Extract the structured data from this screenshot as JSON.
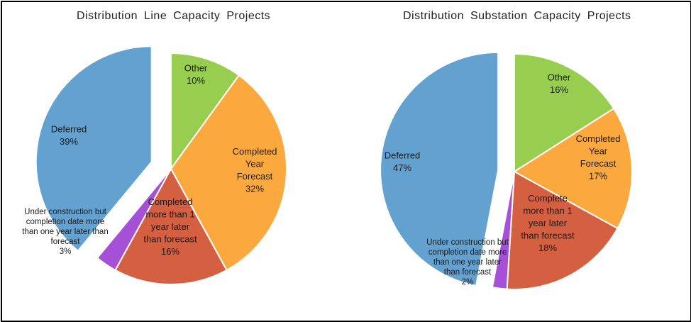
{
  "colors": {
    "blue": "#63A2D0",
    "green": "#97CE50",
    "orange": "#FBA93E",
    "red": "#D45F41",
    "purple": "#A650D8"
  },
  "chart_data": [
    {
      "type": "pie",
      "title": "Distribution Line Capacity Projects",
      "slices": [
        {
          "name": "Other",
          "value": 10,
          "pct_label": "10%",
          "color": "#97CE50",
          "label_lines": [
            "Other",
            "10%"
          ]
        },
        {
          "name": "Completed Year Forecast",
          "value": 32,
          "pct_label": "32%",
          "color": "#FBA93E",
          "label_lines": [
            "Completed",
            "Year",
            "Forecast",
            "32%"
          ]
        },
        {
          "name": "Completed more than 1 year later than forecast",
          "value": 16,
          "pct_label": "16%",
          "color": "#D45F41",
          "label_lines": [
            "Completed",
            "more than 1",
            "year later",
            "than forecast",
            "16%"
          ]
        },
        {
          "name": "Under construction but completion date more than one year later than forecast",
          "value": 3,
          "pct_label": "3%",
          "color": "#A650D8",
          "label_lines": [
            "Under construction but",
            "completion date more",
            "than one year later than",
            "forecast",
            "3%"
          ]
        },
        {
          "name": "Deferred",
          "value": 39,
          "pct_label": "39%",
          "color": "#63A2D0",
          "label_lines": [
            "Deferred",
            "39%"
          ],
          "exploded": true
        }
      ]
    },
    {
      "type": "pie",
      "title": "Distribution Substation Capacity Projects",
      "slices": [
        {
          "name": "Other",
          "value": 16,
          "pct_label": "16%",
          "color": "#97CE50",
          "label_lines": [
            "Other",
            "16%"
          ]
        },
        {
          "name": "Completed Year Forecast",
          "value": 17,
          "pct_label": "17%",
          "color": "#FBA93E",
          "label_lines": [
            "Completed",
            "Year",
            "Forecast",
            "17%"
          ]
        },
        {
          "name": "Complete more than 1 year later than forecast",
          "value": 18,
          "pct_label": "18%",
          "color": "#D45F41",
          "label_lines": [
            "Complete",
            "more than 1",
            "year later",
            "than forecast",
            "18%"
          ]
        },
        {
          "name": "Under construction but completion date more than one year later than forecast",
          "value": 2,
          "pct_label": "2%",
          "color": "#A650D8",
          "label_lines": [
            "Under construction but",
            "completion date more",
            "than one year later",
            "than forecast",
            "2%"
          ]
        },
        {
          "name": "Deferred",
          "value": 47,
          "pct_label": "47%",
          "color": "#63A2D0",
          "label_lines": [
            "Deferred",
            "47%"
          ],
          "exploded": true
        }
      ]
    }
  ]
}
